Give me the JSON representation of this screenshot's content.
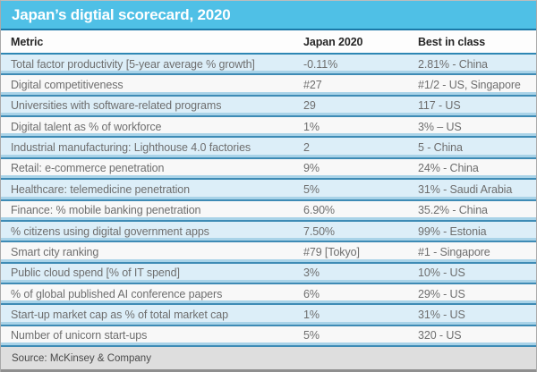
{
  "title": "Japan’s digtial scorecard, 2020",
  "columns": {
    "metric": "Metric",
    "japan": "Japan 2020",
    "best": "Best in class"
  },
  "rows": [
    {
      "metric": "Total factor productivity [5-year average % growth]",
      "japan": "-0.11%",
      "best": "2.81% - China"
    },
    {
      "metric": "Digital competitiveness",
      "japan": "#27",
      "best": "#1/2 - US, Singapore"
    },
    {
      "metric": "Universities with software-related programs",
      "japan": "29",
      "best": "117 - US"
    },
    {
      "metric": "Digital talent as % of workforce",
      "japan": "1%",
      "best": "3% – US"
    },
    {
      "metric": "Industrial manufacturing: Lighthouse 4.0 factories",
      "japan": "2",
      "best": "5 - China"
    },
    {
      "metric": "Retail: e-commerce penetration",
      "japan": "9%",
      "best": "24% - China"
    },
    {
      "metric": "Healthcare: telemedicine penetration",
      "japan": "5%",
      "best": "31% - Saudi Arabia"
    },
    {
      "metric": "Finance: % mobile banking penetration",
      "japan": "6.90%",
      "best": "35.2% - China"
    },
    {
      "metric": "% citizens using digital government apps",
      "japan": "7.50%",
      "best": "99% - Estonia"
    },
    {
      "metric": "Smart city ranking",
      "japan": "#79 [Tokyo]",
      "best": "#1 - Singapore"
    },
    {
      "metric": "Public cloud spend [% of IT spend]",
      "japan": "3%",
      "best": "10% - US"
    },
    {
      "metric": "% of global published AI conference papers",
      "japan": "6%",
      "best": "29% - US"
    },
    {
      "metric": "Start-up market cap as % of total market cap",
      "japan": "1%",
      "best": "31% - US"
    },
    {
      "metric": "Number of unicorn start-ups",
      "japan": "5%",
      "best": "320 - US"
    }
  ],
  "source": "Source: McKinsey & Company",
  "colors": {
    "title_bar": "#4fc0e6",
    "title_rule": "#1c79a8",
    "row_alt_blue": "#dceef8",
    "row_plain": "#f8f8f8",
    "separator_blue": "#3e8bb5",
    "footer_gray": "#dedede",
    "text_gray": "#6e6e6e"
  },
  "chart_data": {
    "type": "table",
    "title": "Japan’s digtial scorecard, 2020",
    "columns": [
      "Metric",
      "Japan 2020",
      "Best in class"
    ],
    "rows": [
      [
        "Total factor productivity [5-year average % growth]",
        "-0.11%",
        "2.81% - China"
      ],
      [
        "Digital competitiveness",
        "#27",
        "#1/2 - US, Singapore"
      ],
      [
        "Universities with software-related programs",
        "29",
        "117 - US"
      ],
      [
        "Digital talent as % of workforce",
        "1%",
        "3% – US"
      ],
      [
        "Industrial manufacturing: Lighthouse 4.0 factories",
        "2",
        "5 - China"
      ],
      [
        "Retail: e-commerce penetration",
        "9%",
        "24% - China"
      ],
      [
        "Healthcare: telemedicine penetration",
        "5%",
        "31% - Saudi Arabia"
      ],
      [
        "Finance: % mobile banking penetration",
        "6.90%",
        "35.2% - China"
      ],
      [
        "% citizens using digital government apps",
        "7.50%",
        "99% - Estonia"
      ],
      [
        "Smart city ranking",
        "#79 [Tokyo]",
        "#1 - Singapore"
      ],
      [
        "Public cloud spend [% of IT spend]",
        "3%",
        "10% - US"
      ],
      [
        "% of global published AI conference papers",
        "6%",
        "29% - US"
      ],
      [
        "Start-up market cap as % of total market cap",
        "1%",
        "31% - US"
      ],
      [
        "Number of unicorn start-ups",
        "5%",
        "320 - US"
      ]
    ],
    "source": "Source: McKinsey & Company",
    "layout": {
      "striped": true,
      "stripe_color": "#dceef8",
      "header_position": "top"
    }
  }
}
